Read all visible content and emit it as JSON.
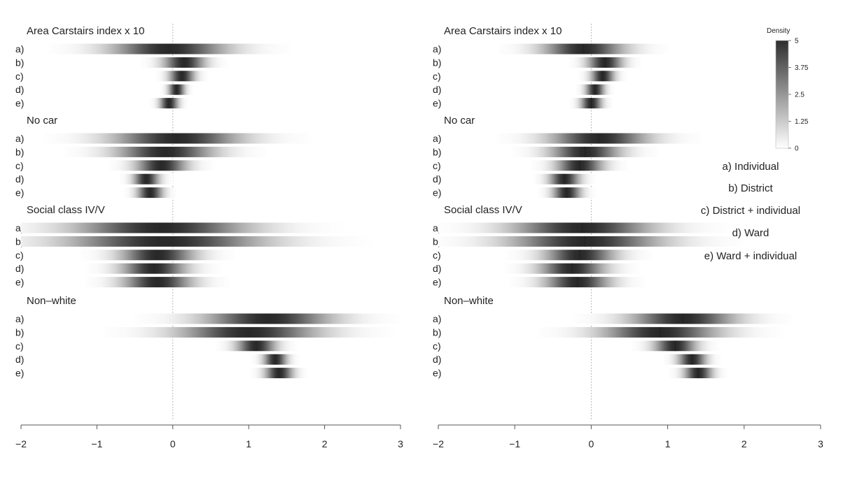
{
  "chart_data": {
    "type": "density-strip",
    "xlim": [
      -2,
      3
    ],
    "x_ticks": [
      -2,
      -1,
      0,
      1,
      2,
      3
    ],
    "x_tick_labels": [
      "−2",
      "−1",
      "0",
      "1",
      "2",
      "3"
    ],
    "reference_line": 0,
    "row_labels": [
      "a)",
      "b)",
      "c)",
      "d)",
      "e)"
    ],
    "key": [
      "a) Individual",
      "b) District",
      "c) District + individual",
      "d) Ward",
      "e) Ward + individual"
    ],
    "colorbar": {
      "title": "Density",
      "range": [
        0,
        5
      ],
      "ticks": [
        5,
        3.75,
        2.5,
        1.25,
        0
      ],
      "tick_labels": [
        "5",
        "3.75",
        "2.5",
        "1.25",
        "0"
      ]
    },
    "panels": [
      {
        "name": "left",
        "groups": [
          {
            "title": "Area Carstairs index x 10",
            "strips": [
              {
                "label": "a)",
                "mean": -0.05,
                "sd": 0.5,
                "median_marker": false
              },
              {
                "label": "b)",
                "mean": 0.15,
                "sd": 0.18,
                "median_marker": false
              },
              {
                "label": "c)",
                "mean": 0.12,
                "sd": 0.11,
                "median_marker": false
              },
              {
                "label": "d)",
                "mean": 0.05,
                "sd": 0.07,
                "median_marker": false
              },
              {
                "label": "e)",
                "mean": -0.05,
                "sd": 0.08,
                "median_marker": false
              }
            ]
          },
          {
            "title": "No car",
            "strips": [
              {
                "label": "a)",
                "mean": 0.05,
                "sd": 0.55,
                "median_marker": false
              },
              {
                "label": "b)",
                "mean": -0.1,
                "sd": 0.42,
                "median_marker": false
              },
              {
                "label": "c)",
                "mean": -0.15,
                "sd": 0.22,
                "median_marker": false
              },
              {
                "label": "d)",
                "mean": -0.35,
                "sd": 0.11,
                "median_marker": false
              },
              {
                "label": "e)",
                "mean": -0.3,
                "sd": 0.11,
                "median_marker": false
              }
            ]
          },
          {
            "title": "Social class IV/V",
            "strips": [
              {
                "label": "a)",
                "mean": -0.15,
                "sd": 0.75,
                "median_marker": false
              },
              {
                "label": "b)",
                "mean": -0.1,
                "sd": 0.85,
                "median_marker": false
              },
              {
                "label": "c)",
                "mean": -0.2,
                "sd": 0.32,
                "median_marker": false
              },
              {
                "label": "d)",
                "mean": -0.25,
                "sd": 0.28,
                "median_marker": false
              },
              {
                "label": "e)",
                "mean": -0.2,
                "sd": 0.3,
                "median_marker": false
              }
            ]
          },
          {
            "title": "Non–white",
            "strips": [
              {
                "label": "a)",
                "mean": 1.25,
                "sd": 0.55,
                "median_marker": false
              },
              {
                "label": "b)",
                "mean": 1.0,
                "sd": 0.6,
                "median_marker": false
              },
              {
                "label": "c)",
                "mean": 1.1,
                "sd": 0.17,
                "median_marker": false
              },
              {
                "label": "d)",
                "mean": 1.35,
                "sd": 0.1,
                "median_marker": false
              },
              {
                "label": "e)",
                "mean": 1.4,
                "sd": 0.12,
                "median_marker": false
              }
            ]
          }
        ]
      },
      {
        "name": "right",
        "groups": [
          {
            "title": "Area Carstairs index x 10",
            "strips": [
              {
                "label": "a)",
                "mean": -0.1,
                "sd": 0.35,
                "median_marker": true
              },
              {
                "label": "b)",
                "mean": 0.18,
                "sd": 0.15,
                "median_marker": true
              },
              {
                "label": "c)",
                "mean": 0.15,
                "sd": 0.1,
                "median_marker": true
              },
              {
                "label": "d)",
                "mean": 0.05,
                "sd": 0.08,
                "median_marker": true
              },
              {
                "label": "e)",
                "mean": 0.0,
                "sd": 0.09,
                "median_marker": true
              }
            ]
          },
          {
            "title": "No car",
            "strips": [
              {
                "label": "a)",
                "mean": 0.1,
                "sd": 0.42,
                "median_marker": true
              },
              {
                "label": "b)",
                "mean": -0.08,
                "sd": 0.3,
                "median_marker": true
              },
              {
                "label": "c)",
                "mean": -0.15,
                "sd": 0.2,
                "median_marker": true
              },
              {
                "label": "d)",
                "mean": -0.35,
                "sd": 0.13,
                "median_marker": true
              },
              {
                "label": "e)",
                "mean": -0.32,
                "sd": 0.12,
                "median_marker": true
              }
            ]
          },
          {
            "title": "Social class IV/V",
            "strips": [
              {
                "label": "a)",
                "mean": -0.12,
                "sd": 0.6,
                "median_marker": true
              },
              {
                "label": "b)",
                "mean": -0.08,
                "sd": 0.65,
                "median_marker": true
              },
              {
                "label": "c)",
                "mean": -0.15,
                "sd": 0.3,
                "median_marker": true
              },
              {
                "label": "d)",
                "mean": -0.25,
                "sd": 0.28,
                "median_marker": true
              },
              {
                "label": "e)",
                "mean": -0.18,
                "sd": 0.28,
                "median_marker": true
              }
            ]
          },
          {
            "title": "Non–white",
            "strips": [
              {
                "label": "a)",
                "mean": 1.2,
                "sd": 0.45,
                "median_marker": true
              },
              {
                "label": "b)",
                "mean": 0.9,
                "sd": 0.5,
                "median_marker": true
              },
              {
                "label": "c)",
                "mean": 1.1,
                "sd": 0.18,
                "median_marker": true
              },
              {
                "label": "d)",
                "mean": 1.32,
                "sd": 0.12,
                "median_marker": true
              },
              {
                "label": "e)",
                "mean": 1.4,
                "sd": 0.12,
                "median_marker": true
              }
            ]
          }
        ]
      }
    ]
  }
}
